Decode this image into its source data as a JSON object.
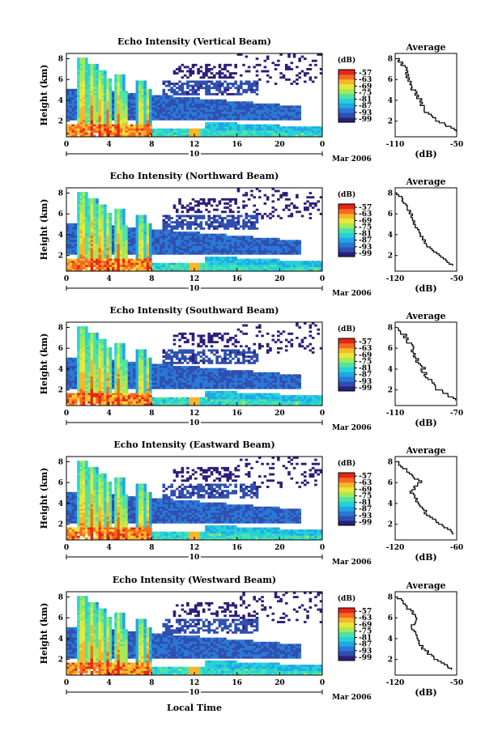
{
  "colors": {
    "colormap": [
      "#2b1f7a",
      "#2f4fb0",
      "#2a78d6",
      "#1fa7e6",
      "#25d1d9",
      "#4fe3a6",
      "#a6ea55",
      "#e8e83a",
      "#f9b62a",
      "#f56a1f",
      "#e3261a"
    ],
    "background": "#ffffff",
    "axis": "#000000"
  },
  "shared": {
    "x_ticks": [
      "0",
      "4",
      "8",
      "12",
      "16",
      "20",
      "0"
    ],
    "y_ticks": [
      "2",
      "4",
      "6",
      "8"
    ],
    "ylabel": "Height (km)",
    "date_day": "10",
    "date_label": "Mar 2006",
    "xlabel": "Local Time",
    "colorbar_unit": "(dB)",
    "colorbar_ticks": [
      "-57",
      "-63",
      "-69",
      "-75",
      "-81",
      "-87",
      "-93",
      "-99"
    ],
    "avg_title": "Average",
    "avg_unit": "(dB)"
  },
  "panels": [
    {
      "title": "Echo Intensity (Vertical Beam)",
      "avg_xticks": [
        "-110",
        "-50"
      ]
    },
    {
      "title": "Echo Intensity (Northward Beam)",
      "avg_xticks": [
        "-120",
        "-50"
      ]
    },
    {
      "title": "Echo Intensity (Southward Beam)",
      "avg_xticks": [
        "-110",
        "-70"
      ]
    },
    {
      "title": "Echo Intensity (Eastward Beam)",
      "avg_xticks": [
        "-120",
        "-60"
      ]
    },
    {
      "title": "Echo Intensity (Westward Beam)",
      "avg_xticks": [
        "-120",
        "-50"
      ]
    }
  ],
  "chart_data": [
    {
      "type": "heatmap",
      "title": "Echo Intensity (Vertical Beam)",
      "ylabel": "Height (km)",
      "x_range_hours": [
        0,
        24
      ],
      "y_range_km": [
        0.5,
        8.5
      ],
      "color_range_dB": [
        -99,
        -57
      ],
      "average_profile": {
        "title": "Average",
        "xlabel": "(dB)",
        "x_range": [
          -110,
          -50
        ],
        "height_km": [
          1,
          2,
          3,
          4,
          5,
          6,
          7,
          8
        ],
        "dB": [
          -50,
          -70,
          -82,
          -86,
          -93,
          -97,
          -100,
          -108
        ]
      }
    },
    {
      "type": "heatmap",
      "title": "Echo Intensity (Northward Beam)",
      "ylabel": "Height (km)",
      "x_range_hours": [
        0,
        24
      ],
      "y_range_km": [
        0.5,
        8.5
      ],
      "color_range_dB": [
        -99,
        -57
      ],
      "average_profile": {
        "title": "Average",
        "xlabel": "(dB)",
        "x_range": [
          -120,
          -50
        ],
        "height_km": [
          1,
          2,
          3,
          4,
          5,
          6,
          7,
          8
        ],
        "dB": [
          -55,
          -72,
          -85,
          -92,
          -98,
          -103,
          -110,
          -118
        ]
      }
    },
    {
      "type": "heatmap",
      "title": "Echo Intensity (Southward Beam)",
      "ylabel": "Height (km)",
      "x_range_hours": [
        0,
        24
      ],
      "y_range_km": [
        0.5,
        8.5
      ],
      "color_range_dB": [
        -99,
        -57
      ],
      "average_profile": {
        "title": "Average",
        "xlabel": "(dB)",
        "x_range": [
          -110,
          -70
        ],
        "height_km": [
          1,
          2,
          3,
          4,
          5,
          6,
          7,
          8
        ],
        "dB": [
          -72,
          -83,
          -88,
          -92,
          -96,
          -99,
          -103,
          -108
        ]
      }
    },
    {
      "type": "heatmap",
      "title": "Echo Intensity (Eastward Beam)",
      "ylabel": "Height (km)",
      "x_range_hours": [
        0,
        24
      ],
      "y_range_km": [
        0.5,
        8.5
      ],
      "color_range_dB": [
        -99,
        -57
      ],
      "average_profile": {
        "title": "Average",
        "xlabel": "(dB)",
        "x_range": [
          -120,
          -60
        ],
        "height_km": [
          1,
          2,
          3,
          4,
          5,
          6,
          7,
          8
        ],
        "dB": [
          -62,
          -78,
          -90,
          -98,
          -104,
          -96,
          -108,
          -118
        ]
      }
    },
    {
      "type": "heatmap",
      "title": "Echo Intensity (Westward Beam)",
      "ylabel": "Height (km)",
      "x_range_hours": [
        0,
        24
      ],
      "y_range_km": [
        0.5,
        8.5
      ],
      "color_range_dB": [
        -99,
        -57
      ],
      "average_profile": {
        "title": "Average",
        "xlabel": "(dB)",
        "x_range": [
          -120,
          -50
        ],
        "height_km": [
          1,
          2,
          3,
          4,
          5,
          6,
          7,
          8
        ],
        "dB": [
          -55,
          -75,
          -88,
          -95,
          -101,
          -95,
          -108,
          -118
        ]
      }
    }
  ]
}
